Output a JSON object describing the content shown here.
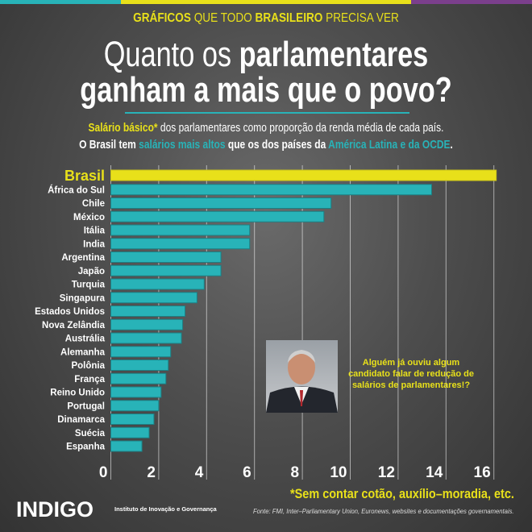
{
  "header": {
    "kicker_1": "GRÁFICOS",
    "kicker_2": " QUE TODO ",
    "kicker_3": "BRASILEIRO",
    "kicker_4": " PRECISA VER",
    "title_1a": "Quanto os ",
    "title_1b": "parlamentares",
    "title_2": "ganham a mais que o povo?",
    "sub1a": "Salário básico*",
    "sub1b": " dos parlamentares como proporção da renda média de cada país.",
    "sub2a": "O Brasil tem ",
    "sub2b": "salários mais altos",
    "sub2c": " que os dos países da ",
    "sub2d": "América Latina e da OCDE",
    "sub2e": "."
  },
  "colors": {
    "teal": "#28b3b8",
    "yellow": "#e8e01a",
    "purple": "#7b3f8c"
  },
  "chart_data": {
    "type": "bar",
    "orientation": "horizontal",
    "title": "Quanto os parlamentares ganham a mais que o povo?",
    "categories": [
      "Brasil",
      "África do Sul",
      "Chile",
      "México",
      "Itália",
      "India",
      "Argentina",
      "Japão",
      "Turquia",
      "Singapura",
      "Estados Unidos",
      "Nova Zelândia",
      "Austrália",
      "Alemanha",
      "Polônia",
      "França",
      "Reino Unido",
      "Portugal",
      "Dinamarca",
      "Suécia",
      "Espanha"
    ],
    "values": [
      16.1,
      13.4,
      9.2,
      8.9,
      5.8,
      5.8,
      4.6,
      4.6,
      3.9,
      3.6,
      3.1,
      3.0,
      2.95,
      2.5,
      2.4,
      2.3,
      2.1,
      2.0,
      1.8,
      1.6,
      1.3
    ],
    "xlim": [
      0,
      16
    ],
    "xticks": [
      "0",
      "2",
      "4",
      "6",
      "8",
      "10",
      "12",
      "14",
      "16"
    ],
    "grid": true,
    "xlabel": "",
    "ylabel": ""
  },
  "callout": "Alguém já ouviu algum candidato falar de redução de salários de parlamentares!?",
  "footer": {
    "note": "*Sem contar cotão, auxílio–moradia, etc.",
    "source": "Fonte: FMI, Inter–Parliamentary Union, Euronews, websites e documentações governamentais.",
    "logo": "INDIGO",
    "institute": "Instituto de Inovação e Governança"
  }
}
